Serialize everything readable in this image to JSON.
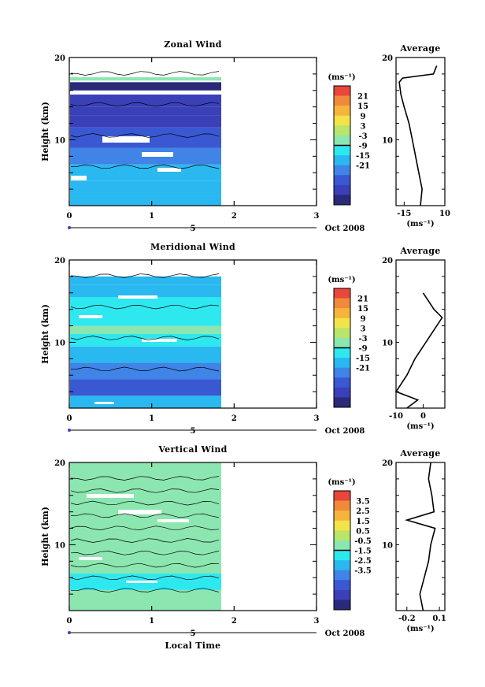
{
  "figure": {
    "xlabel": "Local Time",
    "date_label": "Oct 2008",
    "panels": [
      {
        "title": "Zonal Wind",
        "ylabel": "Height (km)",
        "unit": "(ms⁻¹)",
        "xticks": [
          "0",
          "1",
          "2",
          "3"
        ],
        "yticks": [
          "10",
          "20"
        ],
        "day_label": "5",
        "colorbar_ticks": [
          "21",
          "15",
          "9",
          "3",
          "-3",
          "-9",
          "-15",
          "-21"
        ],
        "avg_title": "Average",
        "avg_xticks": [
          "-15",
          "10"
        ],
        "avg_unit": "(ms⁻¹)"
      },
      {
        "title": "Meridional Wind",
        "ylabel": "Height (km)",
        "unit": "(ms⁻¹)",
        "xticks": [
          "0",
          "1",
          "2",
          "3"
        ],
        "yticks": [
          "10",
          "20"
        ],
        "day_label": "5",
        "colorbar_ticks": [
          "21",
          "15",
          "9",
          "3",
          "-3",
          "-9",
          "-15",
          "-21"
        ],
        "avg_title": "Average",
        "avg_xticks": [
          "-10",
          "0"
        ],
        "avg_unit": "(ms⁻¹)"
      },
      {
        "title": "Vertical Wind",
        "ylabel": "Height (km)",
        "unit": "(ms⁻¹)",
        "xticks": [
          "0",
          "1",
          "2",
          "3"
        ],
        "yticks": [
          "10",
          "20"
        ],
        "day_label": "5",
        "colorbar_ticks": [
          "3.5",
          "2.5",
          "1.5",
          "0.5",
          "-0.5",
          "-1.5",
          "-2.5",
          "-3.5"
        ],
        "avg_title": "Average",
        "avg_xticks": [
          "-0.2",
          "0.1"
        ],
        "avg_unit": "(ms⁻¹)"
      }
    ]
  },
  "colorbar_colors": [
    "#e8473a",
    "#f08a3a",
    "#f5b53c",
    "#f2e34a",
    "#b9e56a",
    "#8ce6b0",
    "#2ee8f0",
    "#2ab8f0",
    "#3f84e6",
    "#3a58d2",
    "#3a40b8",
    "#2a2a78"
  ],
  "chart_data": [
    {
      "type": "heatmap",
      "title": "Zonal Wind",
      "xlabel": "Local Time",
      "ylabel": "Height (km)",
      "xlim": [
        0,
        3
      ],
      "ylim": [
        2,
        20
      ],
      "data_extent_x": [
        0,
        1.8
      ],
      "colorbar_range": [
        -24,
        24
      ],
      "rows": [
        {
          "y0": 2.0,
          "y1": 3.2,
          "value": -6
        },
        {
          "y0": 3.2,
          "y1": 5.0,
          "value": -4
        },
        {
          "y0": 5.0,
          "y1": 7.0,
          "value": -7
        },
        {
          "y0": 7.0,
          "y1": 9.0,
          "value": -10
        },
        {
          "y0": 9.0,
          "y1": 11.5,
          "value": -13
        },
        {
          "y0": 11.5,
          "y1": 13.0,
          "value": -16
        },
        {
          "y0": 13.0,
          "y1": 14.0,
          "value": -17
        },
        {
          "y0": 14.0,
          "y1": 15.5,
          "value": -16
        },
        {
          "y0": 16.0,
          "y1": 17.0,
          "value": -20
        },
        {
          "y0": 17.2,
          "y1": 17.6,
          "value": 1
        }
      ],
      "average_profile": {
        "x_range": [
          -20,
          10
        ],
        "x_ticks": [
          -15,
          10
        ],
        "height_km": [
          2,
          4,
          6,
          8,
          10,
          12,
          14,
          15.5,
          17,
          17.5,
          18,
          19
        ],
        "value": [
          -5,
          -4,
          -6,
          -8,
          -10,
          -12,
          -15,
          -17,
          -18,
          -16,
          3,
          5
        ]
      }
    },
    {
      "type": "heatmap",
      "title": "Meridional Wind",
      "xlabel": "Local Time",
      "ylabel": "Height (km)",
      "xlim": [
        0,
        3
      ],
      "ylim": [
        2,
        20
      ],
      "data_extent_x": [
        0,
        1.8
      ],
      "colorbar_range": [
        -24,
        24
      ],
      "rows": [
        {
          "y0": 2.0,
          "y1": 3.5,
          "value": -7
        },
        {
          "y0": 3.5,
          "y1": 5.5,
          "value": -12
        },
        {
          "y0": 5.5,
          "y1": 7.5,
          "value": -8
        },
        {
          "y0": 7.5,
          "y1": 9.5,
          "value": -5
        },
        {
          "y0": 9.5,
          "y1": 11.0,
          "value": -1
        },
        {
          "y0": 11.0,
          "y1": 12.0,
          "value": 2
        },
        {
          "y0": 12.0,
          "y1": 15.5,
          "value": -3
        },
        {
          "y0": 15.5,
          "y1": 17.0,
          "value": -4
        },
        {
          "y0": 17.0,
          "y1": 18.0,
          "value": -6
        }
      ],
      "average_profile": {
        "x_range": [
          -10,
          8
        ],
        "x_ticks": [
          -10,
          0
        ],
        "height_km": [
          2,
          3,
          4,
          5,
          6,
          8,
          10,
          12,
          13,
          14,
          15,
          16
        ],
        "value": [
          -6,
          -2,
          -10,
          -8,
          -6,
          -3,
          1,
          5,
          7,
          4,
          2,
          0
        ]
      }
    },
    {
      "type": "heatmap",
      "title": "Vertical Wind",
      "xlabel": "Local Time",
      "ylabel": "Height (km)",
      "xlim": [
        0,
        3
      ],
      "ylim": [
        2,
        20
      ],
      "data_extent_x": [
        0,
        1.8
      ],
      "colorbar_range": [
        -4,
        4
      ],
      "rows": [
        {
          "y0": 2.0,
          "y1": 4.5,
          "value": 0.2
        },
        {
          "y0": 4.5,
          "y1": 6.5,
          "value": -0.3
        },
        {
          "y0": 6.5,
          "y1": 9.0,
          "value": 0.2
        },
        {
          "y0": 9.0,
          "y1": 12.0,
          "value": 0.3
        },
        {
          "y0": 12.0,
          "y1": 16.5,
          "value": 0.2
        },
        {
          "y0": 16.5,
          "y1": 20.0,
          "value": 0.3
        }
      ],
      "average_profile": {
        "x_range": [
          -0.3,
          0.15
        ],
        "x_ticks": [
          -0.2,
          0.1
        ],
        "height_km": [
          2,
          4,
          6,
          8,
          10,
          12,
          13,
          14,
          16,
          18,
          20
        ],
        "value": [
          -0.05,
          -0.08,
          -0.04,
          0.0,
          0.02,
          0.06,
          -0.2,
          0.05,
          0.03,
          0.0,
          0.02
        ]
      }
    }
  ]
}
